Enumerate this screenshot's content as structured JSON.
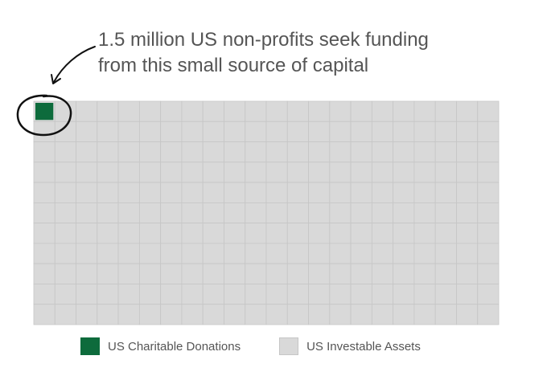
{
  "annotation": {
    "line1": "1.5 million US non-profits seek funding",
    "line2": "from this small source of capital"
  },
  "legend": {
    "donations_label": "US Charitable Donations",
    "assets_label": "US Investable Assets"
  },
  "colors": {
    "donations": "#0d6b3c",
    "assets": "#d9d9d9",
    "grid_lines": "#c6c6c6",
    "annotation_ink": "#111111"
  },
  "chart_data": {
    "type": "waffle",
    "grid": {
      "columns": 22,
      "rows": 11
    },
    "series": [
      {
        "name": "US Charitable Donations",
        "cells": 1
      },
      {
        "name": "US Investable Assets",
        "cells": 241
      }
    ],
    "highlighted_cell": {
      "row": 0,
      "column": 0
    },
    "annotation_text": "1.5 million US non-profits seek funding from this small source of capital",
    "legend_position": "bottom"
  }
}
